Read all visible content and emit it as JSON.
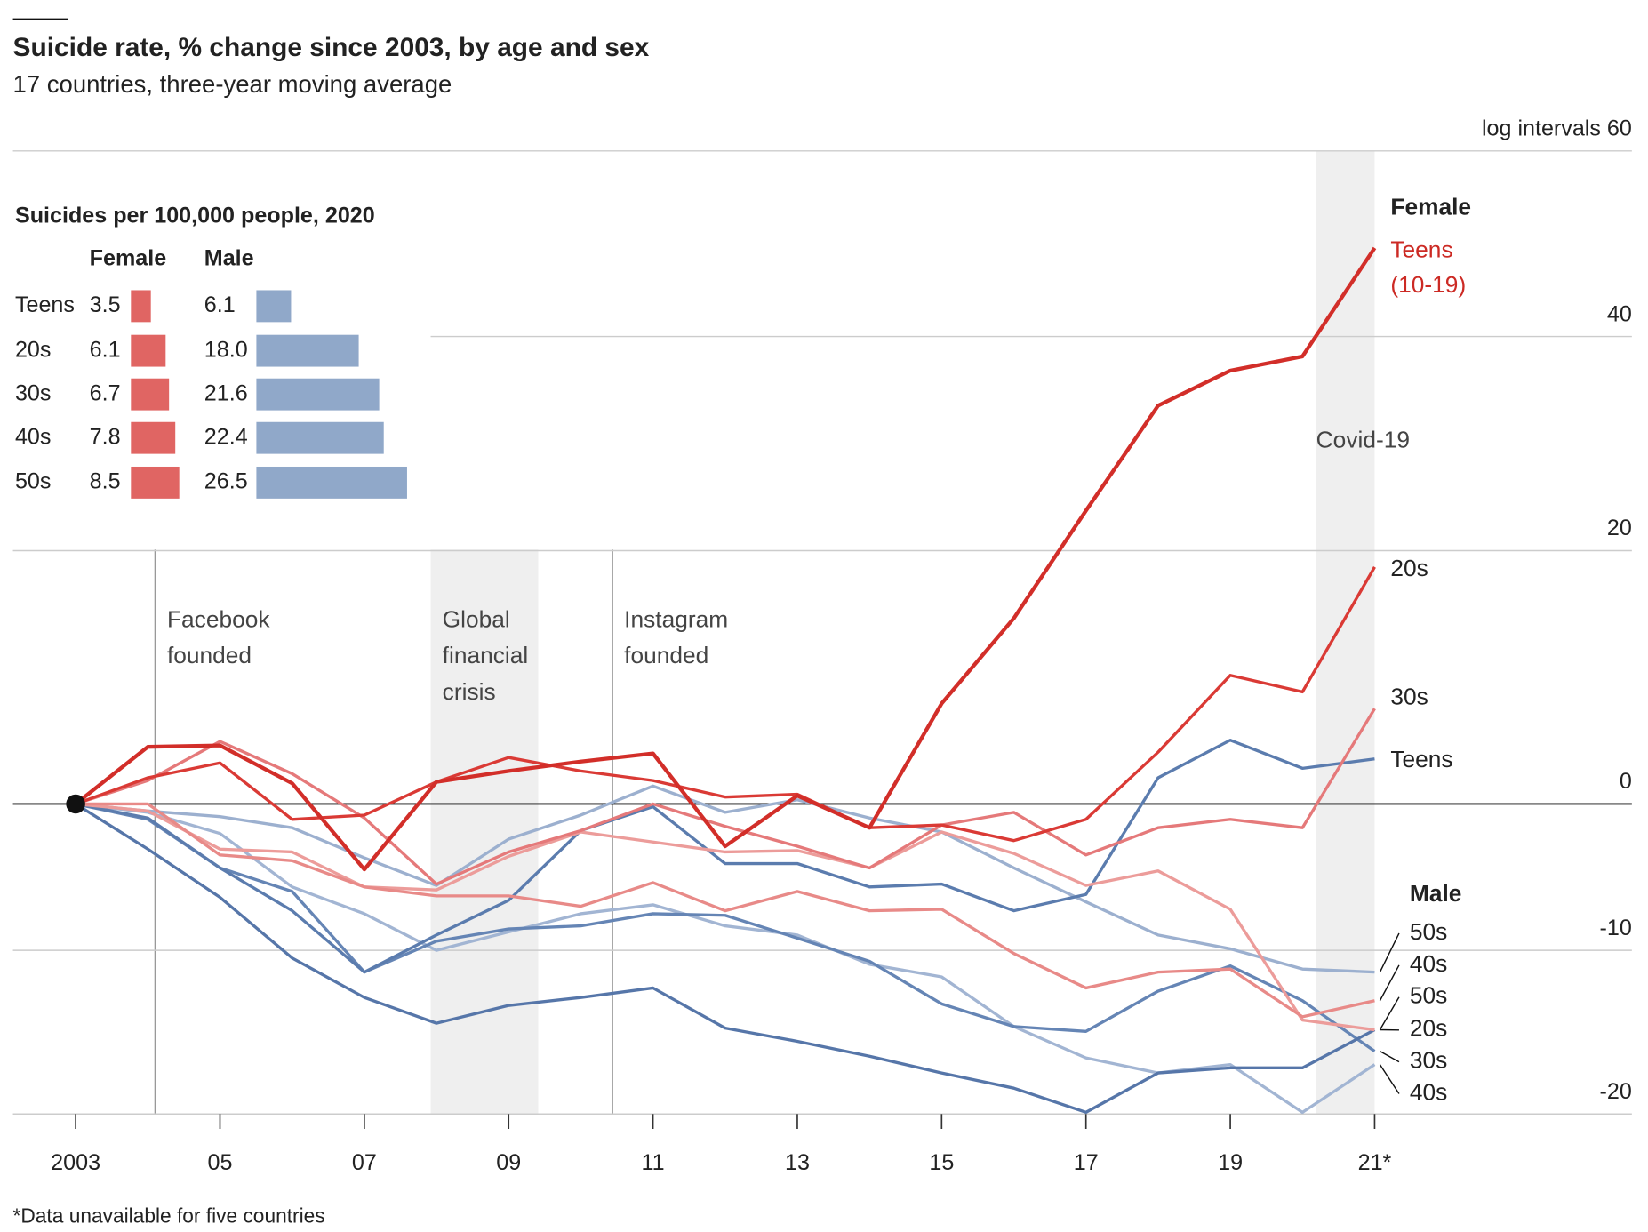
{
  "chart_data": [
    {
      "type": "line",
      "title": "Suicide rate, % change since 2003, by age and sex",
      "subtitle": "17 countries, three-year moving average",
      "footnote": "*Data unavailable for five countries",
      "yscale": "log",
      "grid": true,
      "x": [
        2003,
        2004,
        2005,
        2006,
        2007,
        2008,
        2009,
        2010,
        2011,
        2012,
        2013,
        2014,
        2015,
        2016,
        2017,
        2018,
        2019,
        2020,
        2021
      ],
      "xlim": [
        2003,
        2021
      ],
      "xticks": [
        2003,
        {
          "value": 2005,
          "label": "05"
        },
        {
          "value": 2007,
          "label": "07"
        },
        {
          "value": 2009,
          "label": "09"
        },
        {
          "value": 2011,
          "label": "11"
        },
        {
          "value": 2013,
          "label": "13"
        },
        {
          "value": 2015,
          "label": "15"
        },
        {
          "value": 2017,
          "label": "17"
        },
        {
          "value": 2019,
          "label": "19"
        },
        {
          "value": 2021,
          "label": "21*"
        }
      ],
      "ylim": [
        -20,
        60
      ],
      "yticks": [
        {
          "value": 60,
          "label": "log intervals 60"
        },
        40,
        20,
        0,
        -10,
        -20
      ],
      "group_labels": [
        {
          "text": "Female",
          "color": "#cc2a24"
        },
        {
          "text": "Male",
          "color": "#3c5e98"
        }
      ],
      "annotations": [
        {
          "text": "Facebook founded",
          "x": 2004.1
        },
        {
          "text": "Global financial crisis",
          "x0": 2007.92,
          "x1": 2009.41
        },
        {
          "text": "Instagram founded",
          "x": 2010.44
        },
        {
          "text": "Covid-19",
          "x0": 2020.19,
          "x1": 2021
        }
      ],
      "series": [
        {
          "name": "Teens (10-19)",
          "color": "#d22e29",
          "label_color": "#cc2a24",
          "values": [
            0,
            4.2,
            4.3,
            1.5,
            -4.6,
            1.6,
            2.4,
            3.1,
            3.7,
            -3.0,
            0.6,
            -1.7,
            7.5,
            14.3,
            23.5,
            33.2,
            36.6,
            38.0,
            49.2
          ]
        },
        {
          "name": "20s",
          "color": "#da3a35",
          "label_color": "#cc2a24",
          "values": [
            0,
            1.9,
            3.0,
            -1.1,
            -0.8,
            1.6,
            3.4,
            2.4,
            1.7,
            0.5,
            0.7,
            -1.7,
            -1.5,
            -2.6,
            -1.1,
            3.8,
            9.7,
            8.4,
            18.6
          ]
        },
        {
          "name": "30s",
          "color": "#e5797a",
          "label_color": "#cc2a24",
          "values": [
            0,
            1.7,
            4.6,
            2.2,
            -1.0,
            -5.6,
            -3.4,
            -1.9,
            0,
            -1.6,
            -3.0,
            -4.5,
            -1.5,
            -0.6,
            -3.6,
            -1.7,
            -1.1,
            -1.7,
            7.1
          ]
        },
        {
          "name": "40s",
          "color": "#e88a88",
          "label_color": "#cc2a24",
          "values": [
            0,
            0,
            -3.6,
            -4.0,
            -5.8,
            -6.4,
            -6.4,
            -7.1,
            -5.5,
            -7.4,
            -6.1,
            -7.4,
            -7.3,
            -10.2,
            -12.4,
            -11.4,
            -11.2,
            -14.2,
            -13.2
          ]
        },
        {
          "name": "50s",
          "color": "#ec9c9a",
          "label_color": "#cc2a24",
          "values": [
            0,
            -0.5,
            -3.2,
            -3.4,
            -5.8,
            -6.0,
            -3.7,
            -2.0,
            -2.7,
            -3.4,
            -3.3,
            -4.5,
            -2.0,
            -3.5,
            -5.7,
            -4.7,
            -7.3,
            -14.4,
            -15.0
          ]
        },
        {
          "name": "Teens",
          "color": "#5b7cae",
          "label_color": "#3c5e98",
          "values": [
            0,
            -1.0,
            -4.5,
            -7.4,
            -11.4,
            -9.0,
            -6.7,
            -1.9,
            -0.2,
            -4.2,
            -4.2,
            -5.8,
            -5.6,
            -7.4,
            -6.3,
            1.9,
            4.7,
            2.6,
            3.3
          ]
        },
        {
          "name": "20s",
          "color": "#5676a9",
          "label_color": "#3c5e98",
          "values": [
            0,
            -3.2,
            -6.5,
            -10.5,
            -13.0,
            -14.6,
            -13.5,
            -13.0,
            -12.4,
            -14.9,
            -15.7,
            -16.6,
            -17.6,
            -18.5,
            -19.9,
            -17.6,
            -17.3,
            -17.3,
            -15.0
          ]
        },
        {
          "name": "30s",
          "color": "#6585b5",
          "label_color": "#3c5e98",
          "values": [
            0,
            -1.1,
            -4.5,
            -6.1,
            -11.4,
            -9.4,
            -8.6,
            -8.4,
            -7.6,
            -7.7,
            -9.2,
            -10.7,
            -13.4,
            -14.8,
            -15.1,
            -12.6,
            -11.0,
            -13.2,
            -16.3
          ]
        },
        {
          "name": "40s",
          "color": "#a2b5d3",
          "label_color": "#3c5e98",
          "values": [
            0,
            -0.6,
            -2.1,
            -5.8,
            -7.6,
            -10.0,
            -8.8,
            -7.6,
            -7.0,
            -8.4,
            -9.0,
            -10.9,
            -11.7,
            -14.8,
            -16.7,
            -17.6,
            -17.1,
            -19.9,
            -17.1
          ]
        },
        {
          "name": "50s",
          "color": "#9cb0cf",
          "label_color": "#3c5e98",
          "values": [
            0,
            -0.5,
            -0.9,
            -1.7,
            -3.8,
            -5.7,
            -2.5,
            -0.8,
            1.3,
            -0.6,
            0.3,
            -1.0,
            -2.0,
            -4.5,
            -6.8,
            -9.0,
            -9.9,
            -11.2,
            -11.4
          ]
        }
      ]
    },
    {
      "type": "bar",
      "orientation": "horizontal",
      "title": "Suicides per 100,000 people, 2020",
      "categories": [
        "Teens",
        "20s",
        "30s",
        "40s",
        "50s"
      ],
      "series": [
        {
          "name": "Female",
          "color": "#e06563",
          "label_color": "#cc2a24",
          "values": [
            3.5,
            6.1,
            6.7,
            7.8,
            8.5
          ]
        },
        {
          "name": "Male",
          "color": "#90a8c9",
          "label_color": "#3c5e98",
          "values": [
            6.1,
            18,
            21.6,
            22.4,
            26.5
          ],
          "value_labels": [
            "6.1",
            "18.0",
            "21.6",
            "22.4",
            "26.5"
          ]
        }
      ]
    }
  ]
}
